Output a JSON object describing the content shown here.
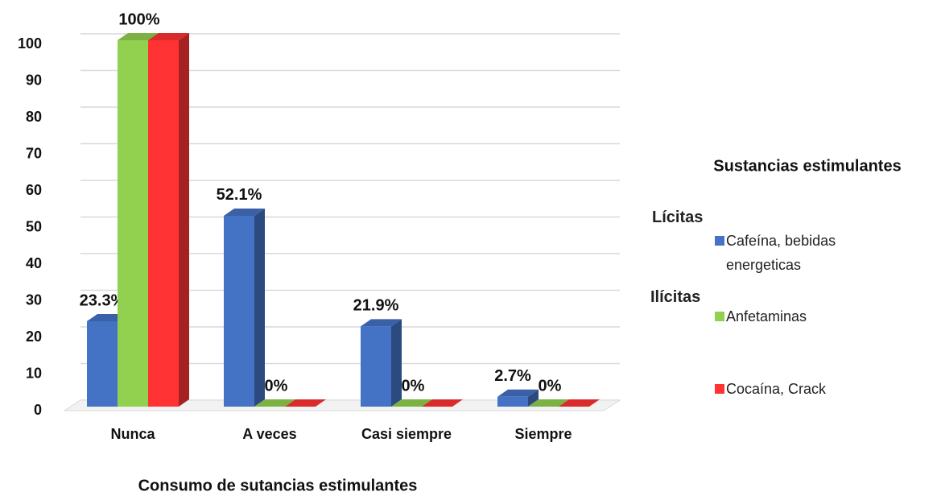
{
  "chart_data": {
    "type": "bar3d",
    "x_label": "Consumo de sutancias estimulantes",
    "legend_title": "Sustancias estimulantes",
    "legend_groups": [
      "Lícitas",
      "Ilícitas"
    ],
    "categories": [
      "Nunca",
      "A veces",
      "Casi siempre",
      "Siempre"
    ],
    "series": [
      {
        "name": "Cafeína, bebidas energeticas",
        "color": "#4472c4",
        "values": [
          23.3,
          52.1,
          21.9,
          2.7
        ],
        "value_labels": [
          "23.3%",
          "52.1%",
          "21.9%",
          "2.7%"
        ]
      },
      {
        "name": "Anfetaminas",
        "color": "#92d050",
        "values": [
          100,
          0,
          0,
          0
        ]
      },
      {
        "name": "Cocaína, Crack",
        "color": "#ff3333",
        "values": [
          100,
          0,
          0,
          0
        ],
        "value_labels": [
          "100%",
          "0%",
          "0%",
          "0%"
        ]
      }
    ],
    "ylim": [
      0,
      100
    ],
    "yticks": [
      0,
      10,
      20,
      30,
      40,
      50,
      60,
      70,
      80,
      90,
      100
    ],
    "grid": true
  }
}
